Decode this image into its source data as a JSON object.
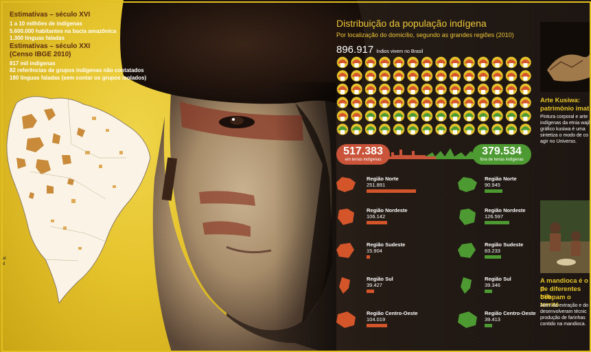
{
  "estimates_16c": {
    "heading": "Estimativas – século XVI",
    "lines": [
      "1 a 10 milhões de indígenas",
      "5.600.000 habitantes na bacia amazônica",
      "1.300 línguas faladas"
    ]
  },
  "estimates_21c": {
    "heading1": "Estimativas – século XXI",
    "heading2": "(Censo IBGE 2010)",
    "lines": [
      "817 mil indígenas",
      "82 referências de grupos indígenas não contatados",
      "180 línguas faladas (sem contar os grupos isolados)"
    ]
  },
  "map_side": {
    "l1": "al",
    "l2": "d"
  },
  "infographic": {
    "title": "Distribuição da população indígena",
    "subtitle": "Por localização do domicílio, segundo as grandes regiões (2010)",
    "total_value": "896.917",
    "total_label": "índios vivem no Brasil",
    "icon_grid": {
      "total_icons": 100,
      "orange_icons": 58
    },
    "in_lands": {
      "value": "517.383",
      "label": "em terras indígenas"
    },
    "out_lands": {
      "value": "379.534",
      "label": "fora de terras indígenas"
    },
    "colors": {
      "orange": "#d4552a",
      "green": "#4e9a32",
      "title": "#f0c83a",
      "yellow": "#e5c32c"
    },
    "regions_in": [
      {
        "name": "Região Norte",
        "value": "251.891",
        "num": 251891
      },
      {
        "name": "Região Nordeste",
        "value": "106.142",
        "num": 106142
      },
      {
        "name": "Região Sudeste",
        "value": "15.904",
        "num": 15904
      },
      {
        "name": "Região Sul",
        "value": "39.427",
        "num": 39427
      },
      {
        "name": "Região Centro-Oeste",
        "value": "104.019",
        "num": 104019
      }
    ],
    "regions_out": [
      {
        "name": "Região Norte",
        "value": "90.945",
        "num": 90945
      },
      {
        "name": "Região Nordeste",
        "value": "126.597",
        "num": 126597
      },
      {
        "name": "Região Sudeste",
        "value": "83.233",
        "num": 83233
      },
      {
        "name": "Região Sul",
        "value": "39.346",
        "num": 39346
      },
      {
        "name": "Região Centro-Oeste",
        "value": "39.413",
        "num": 39413
      }
    ]
  },
  "sidebar": {
    "art_heading1": "Arte Kusiwa:",
    "art_heading2": "patrimônio imat",
    "art_lines": [
      "Pintura corporal e arte",
      "indígenas da etnia wajã",
      "gráfico kusiwa é uma",
      "sintetiza o modo de co",
      "agir no Universo."
    ],
    "mand_heading1": "A mandioca é o p",
    "mand_heading2": "de diferentes trib",
    "mand_heading3": "ocupam o territó",
    "mand_lines": [
      "Além da extração e do",
      "desenvolveram técnic",
      "produção de farinhas",
      "contido na mandioca."
    ]
  }
}
